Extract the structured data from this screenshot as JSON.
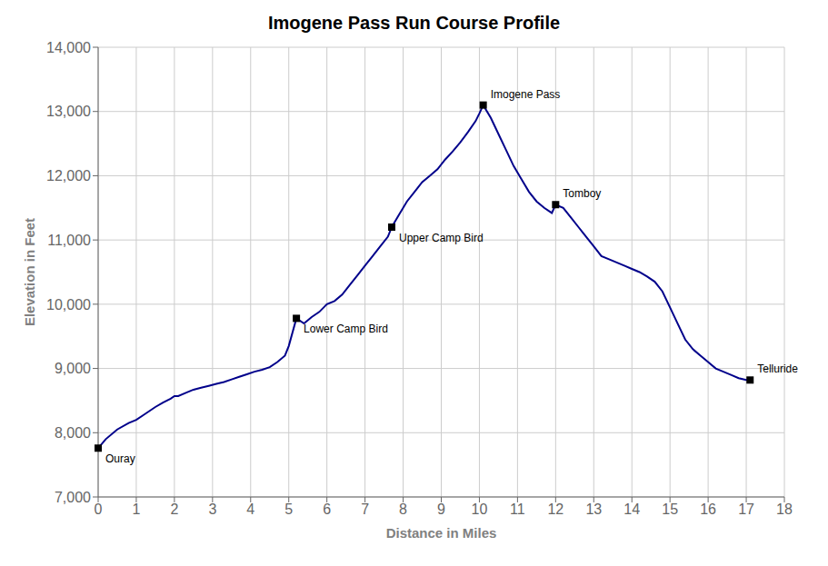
{
  "chart_data": {
    "type": "line",
    "title": "Imogene Pass Run Course Profile",
    "x_label": "Distance in Miles",
    "y_label": "Elevation in Feet",
    "color": "#00008B",
    "grid": true,
    "xlim": [
      0,
      18
    ],
    "ylim": [
      7000,
      14000
    ],
    "xticks": [
      0,
      1,
      2,
      3,
      4,
      5,
      6,
      7,
      8,
      9,
      10,
      11,
      12,
      13,
      14,
      15,
      16,
      17,
      18
    ],
    "yticks": [
      {
        "value": 7000,
        "label": "7,000"
      },
      {
        "value": 8000,
        "label": "8,000"
      },
      {
        "value": 9000,
        "label": "9,000"
      },
      {
        "value": 10000,
        "label": "10,000"
      },
      {
        "value": 11000,
        "label": "11,000"
      },
      {
        "value": 12000,
        "label": "12,000"
      },
      {
        "value": 13000,
        "label": "13,000"
      },
      {
        "value": 14000,
        "label": "14,000"
      }
    ],
    "annotations": [
      {
        "text": "Ouray",
        "x": 0.0,
        "y": 7760
      },
      {
        "text": "Lower Camp Bird",
        "x": 5.2,
        "y": 9780
      },
      {
        "text": "Upper Camp Bird",
        "x": 7.7,
        "y": 11200
      },
      {
        "text": "Imogene Pass",
        "x": 10.1,
        "y": 13100
      },
      {
        "text": "Tomboy",
        "x": 12.0,
        "y": 11550
      },
      {
        "text": "Telluride",
        "x": 17.1,
        "y": 8820
      }
    ],
    "x": [
      0.0,
      0.2,
      0.5,
      0.8,
      1.0,
      1.2,
      1.5,
      1.7,
      1.9,
      2.0,
      2.1,
      2.3,
      2.5,
      2.7,
      2.9,
      3.1,
      3.3,
      3.5,
      3.7,
      3.9,
      4.1,
      4.3,
      4.5,
      4.7,
      4.9,
      5.0,
      5.2,
      5.4,
      5.6,
      5.8,
      6.0,
      6.2,
      6.4,
      6.6,
      6.8,
      7.0,
      7.2,
      7.4,
      7.6,
      7.7,
      7.9,
      8.1,
      8.3,
      8.5,
      8.7,
      8.9,
      9.1,
      9.3,
      9.5,
      9.7,
      9.9,
      10.0,
      10.1,
      10.3,
      10.5,
      10.7,
      10.9,
      11.1,
      11.3,
      11.5,
      11.7,
      11.9,
      12.0,
      12.2,
      12.4,
      12.6,
      12.8,
      13.0,
      13.2,
      13.4,
      13.6,
      13.8,
      14.0,
      14.2,
      14.4,
      14.6,
      14.8,
      15.0,
      15.2,
      15.4,
      15.6,
      15.8,
      16.0,
      16.2,
      16.4,
      16.6,
      16.8,
      17.0,
      17.1
    ],
    "values": [
      7760,
      7900,
      8050,
      8150,
      8200,
      8280,
      8400,
      8470,
      8530,
      8570,
      8570,
      8620,
      8670,
      8700,
      8730,
      8760,
      8790,
      8830,
      8870,
      8910,
      8950,
      8980,
      9020,
      9100,
      9200,
      9350,
      9780,
      9700,
      9800,
      9880,
      10000,
      10050,
      10150,
      10300,
      10450,
      10600,
      10750,
      10900,
      11050,
      11200,
      11400,
      11600,
      11750,
      11900,
      12000,
      12100,
      12250,
      12380,
      12520,
      12680,
      12850,
      12970,
      13100,
      12900,
      12650,
      12400,
      12150,
      11950,
      11750,
      11600,
      11500,
      11420,
      11550,
      11500,
      11350,
      11200,
      11050,
      10900,
      10750,
      10700,
      10650,
      10600,
      10550,
      10500,
      10430,
      10350,
      10200,
      9950,
      9700,
      9450,
      9300,
      9200,
      9100,
      9000,
      8950,
      8900,
      8850,
      8820,
      8820
    ]
  }
}
